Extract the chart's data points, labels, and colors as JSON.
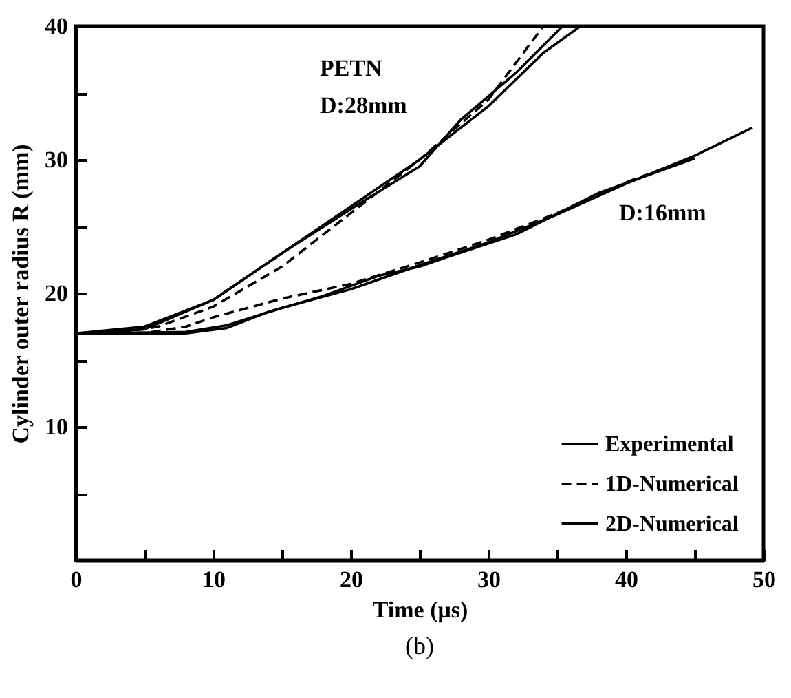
{
  "chart_data": {
    "type": "line",
    "xlabel": "Time (μs)",
    "ylabel": "Cylinder outer radius R (mm)",
    "xlim": [
      0,
      50
    ],
    "ylim": [
      0,
      40
    ],
    "xticks": [
      0,
      {
        "value": 5,
        "label": null
      },
      10,
      {
        "value": 15,
        "label": null
      },
      20,
      {
        "value": 25,
        "label": null
      },
      30,
      {
        "value": 35,
        "label": null
      },
      40,
      {
        "value": 45,
        "label": null
      },
      50
    ],
    "yticks": [
      {
        "value": 0,
        "label": null
      },
      {
        "value": 5,
        "label": null
      },
      10,
      {
        "value": 15,
        "label": null
      },
      20,
      {
        "value": 25,
        "label": null
      },
      30,
      {
        "value": 35,
        "label": null
      },
      40
    ],
    "legend": "bottom right",
    "grid": false,
    "series": [
      {
        "name": "Experimental",
        "color": "#000000",
        "line_style": "solid",
        "x": [
          0,
          5,
          10,
          15,
          20,
          25,
          30,
          34,
          36.7
        ],
        "values": [
          17,
          17.5,
          19.5,
          23,
          26.5,
          30,
          34,
          38,
          40
        ]
      },
      {
        "name": "1D-Numerical",
        "color": "#000000",
        "line_style": "dashed",
        "x": [
          0,
          3,
          6,
          10,
          15,
          20,
          25,
          30,
          34
        ],
        "values": [
          17,
          17,
          17.5,
          19,
          22,
          26,
          30,
          34.5,
          40
        ]
      },
      {
        "name": "2D-Numerical",
        "color": "#000000",
        "line_style": "solid",
        "x": [
          0,
          5,
          10,
          15,
          20,
          25,
          28,
          32,
          35.4
        ],
        "values": [
          17,
          17.3,
          19.5,
          23,
          26.3,
          29.5,
          33,
          36.5,
          40
        ]
      },
      {
        "color": "#000000",
        "line_style": "solid",
        "x": [
          0,
          8,
          11,
          15,
          20,
          25,
          30,
          35,
          40,
          45,
          49.2
        ],
        "values": [
          17,
          17.1,
          17.6,
          18.9,
          20.3,
          22.1,
          23.8,
          25.9,
          28.2,
          30.3,
          32.4
        ]
      },
      {
        "color": "#000000",
        "line_style": "dashed",
        "x": [
          0,
          5,
          8,
          10,
          15,
          20,
          25,
          30,
          35,
          40,
          45
        ],
        "values": [
          17,
          17,
          17.5,
          18.2,
          19.6,
          20.7,
          22.3,
          24,
          26,
          28.3,
          30.2
        ]
      },
      {
        "color": "#000000",
        "line_style": "solid",
        "x": [
          0,
          8,
          11,
          14,
          18,
          22,
          25,
          27,
          32,
          38,
          45
        ],
        "values": [
          17,
          17,
          17.4,
          18.6,
          19.8,
          21.3,
          22,
          22.7,
          24.4,
          27.5,
          30.1
        ]
      }
    ],
    "annotations": [
      "PETN",
      "D:28mm",
      "D:16mm",
      "(b)"
    ]
  }
}
